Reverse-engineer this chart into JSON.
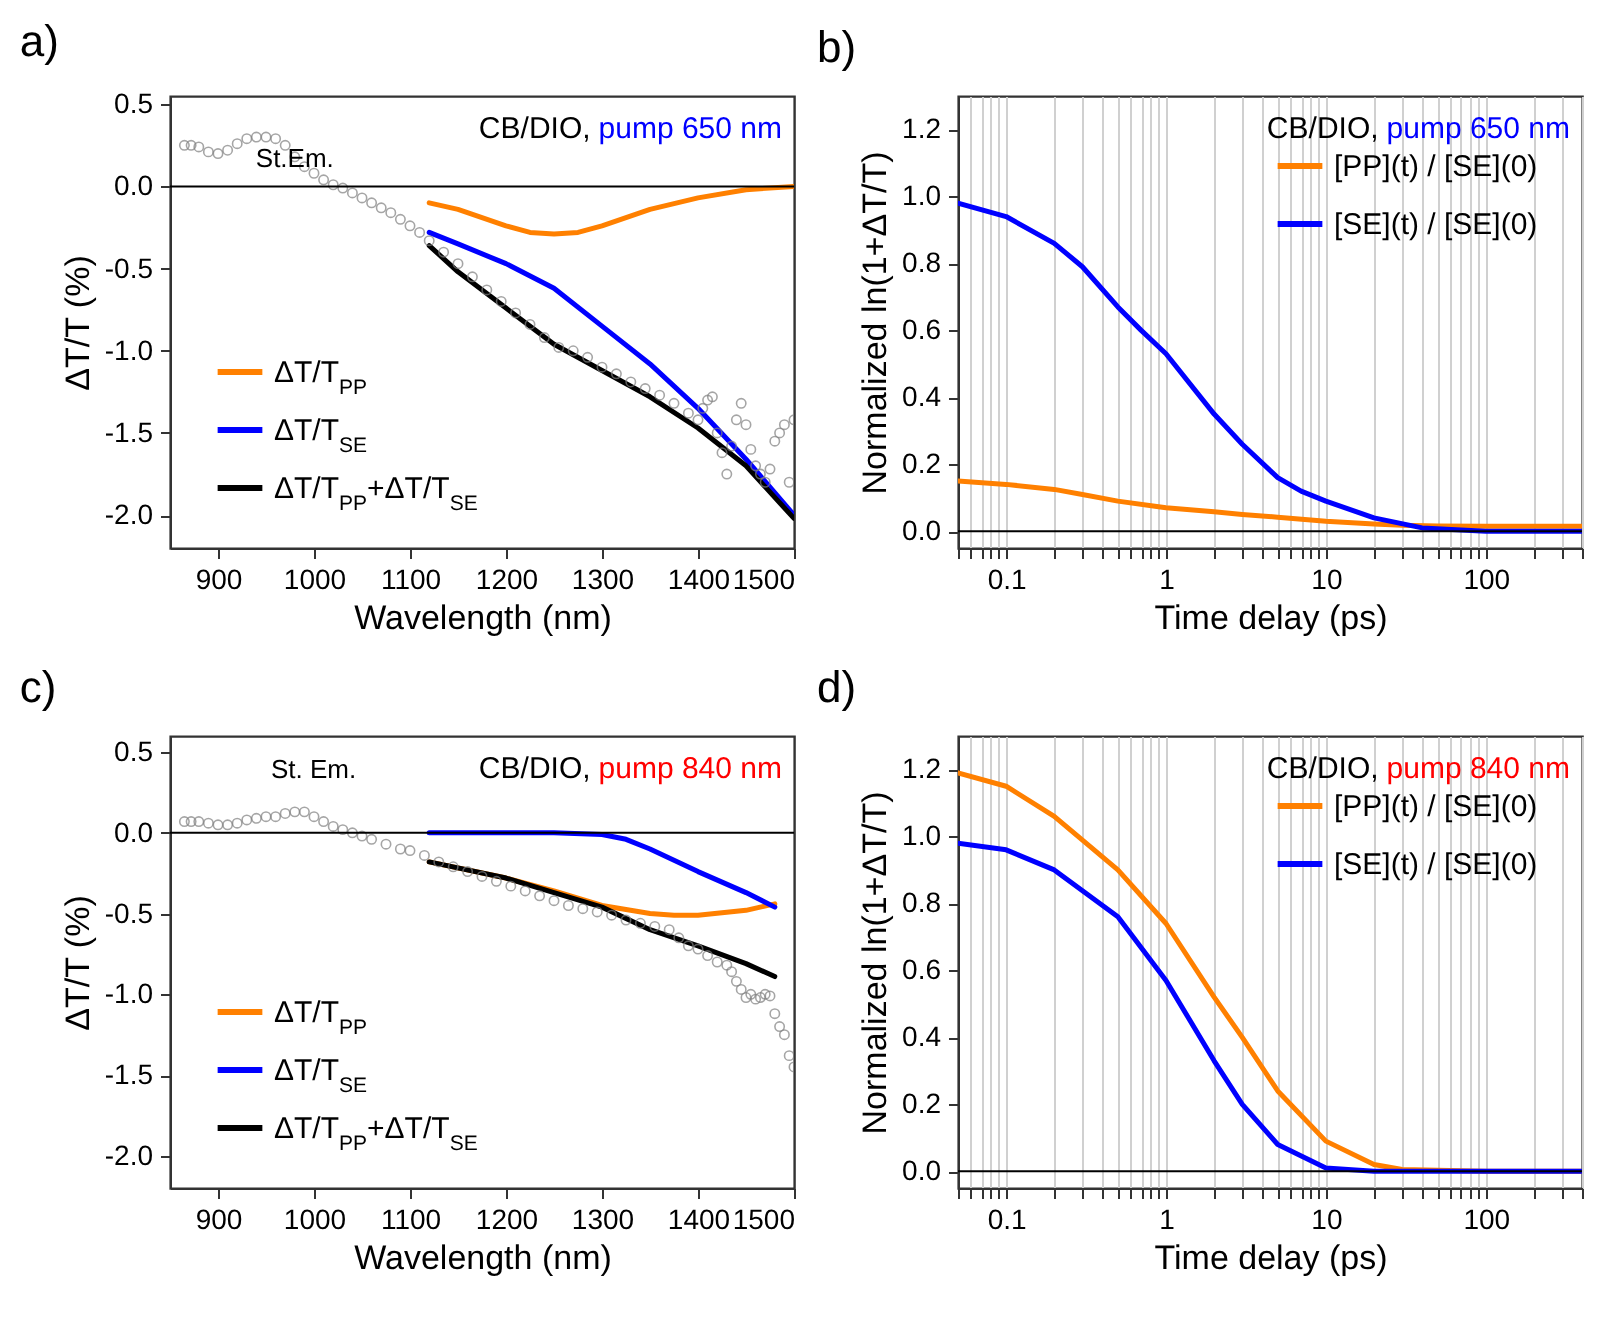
{
  "chart_data": [
    {
      "type": "line",
      "title": "a)",
      "xlabel": "Wavelength (nm)",
      "ylabel": "ΔT/T (%)",
      "xlim": [
        850,
        1500
      ],
      "xticks": [
        900,
        1000,
        1100,
        1200,
        1300,
        1400,
        1500
      ],
      "ylim": [
        -2.2,
        0.55
      ],
      "yticks": [
        {
          "value": -2,
          "label": "-2.0"
        },
        -1.5,
        {
          "value": -1,
          "label": "-1.0"
        },
        -0.5,
        {
          "value": 0,
          "label": "0.0"
        },
        0.5
      ],
      "legend": "bottom left",
      "annotations": [
        "CB/DIO,",
        "pump 650 nm",
        "St.Em."
      ],
      "ref_lines": [
        {
          "axis": "y",
          "value": 0
        }
      ],
      "series": [
        {
          "type": "scatter",
          "color": "#808080",
          "x": [
            865,
            872,
            880,
            890,
            900,
            910,
            920,
            930,
            940,
            950,
            960,
            970,
            980,
            990,
            1000,
            1010,
            1020,
            1030,
            1040,
            1050,
            1060,
            1070,
            1080,
            1090,
            1100,
            1110,
            1120,
            1135,
            1150,
            1165,
            1180,
            1195,
            1210,
            1225,
            1240,
            1255,
            1270,
            1285,
            1300,
            1315,
            1330,
            1345,
            1360,
            1375,
            1390,
            1400,
            1405,
            1410,
            1415,
            1420,
            1425,
            1430,
            1435,
            1440,
            1445,
            1450,
            1455,
            1460,
            1465,
            1470,
            1475,
            1480,
            1485,
            1490,
            1495,
            1500
          ],
          "values": [
            0.25,
            0.25,
            0.24,
            0.21,
            0.2,
            0.22,
            0.26,
            0.29,
            0.3,
            0.3,
            0.29,
            0.25,
            0.18,
            0.12,
            0.08,
            0.04,
            0.01,
            -0.01,
            -0.04,
            -0.07,
            -0.1,
            -0.13,
            -0.16,
            -0.2,
            -0.24,
            -0.28,
            -0.33,
            -0.4,
            -0.47,
            -0.55,
            -0.63,
            -0.7,
            -0.77,
            -0.84,
            -0.92,
            -0.98,
            -1.0,
            -1.04,
            -1.1,
            -1.14,
            -1.19,
            -1.23,
            -1.27,
            -1.32,
            -1.38,
            -1.42,
            -1.35,
            -1.3,
            -1.28,
            -1.5,
            -1.62,
            -1.75,
            -1.58,
            -1.42,
            -1.32,
            -1.45,
            -1.6,
            -1.7,
            -1.75,
            -1.8,
            -1.72,
            -1.55,
            -1.5,
            -1.45,
            -1.8,
            -1.42
          ]
        },
        {
          "type": "line",
          "name": "ΔT/T$_{PP}$",
          "color": "#ff8000",
          "x": [
            1120,
            1150,
            1200,
            1225,
            1250,
            1275,
            1300,
            1350,
            1400,
            1450,
            1500
          ],
          "values": [
            -0.1,
            -0.14,
            -0.24,
            -0.28,
            -0.29,
            -0.28,
            -0.24,
            -0.14,
            -0.07,
            -0.02,
            0
          ]
        },
        {
          "type": "line",
          "name": "ΔT/T$_{SE}$",
          "color": "#0000ff",
          "x": [
            1120,
            1150,
            1200,
            1250,
            1300,
            1350,
            1400,
            1450,
            1500
          ],
          "values": [
            -0.28,
            -0.35,
            -0.47,
            -0.62,
            -0.85,
            -1.08,
            -1.35,
            -1.66,
            -2.0
          ]
        },
        {
          "type": "line",
          "name": "ΔT/T$_{PP}$+ΔT/T$_{SE}$",
          "color": "#000000",
          "x": [
            1120,
            1150,
            1200,
            1250,
            1300,
            1350,
            1400,
            1450,
            1500
          ],
          "values": [
            -0.36,
            -0.52,
            -0.74,
            -0.96,
            -1.12,
            -1.28,
            -1.47,
            -1.7,
            -2.02
          ]
        }
      ]
    },
    {
      "type": "line",
      "title": "b)",
      "xlabel": "Time delay (ps)",
      "ylabel": "Normalized ln(1+ΔT/T)",
      "log": "x",
      "grid": "x",
      "xlim": [
        0.05,
        400
      ],
      "xticks": [
        {
          "value": 0.05,
          "label": null
        },
        {
          "value": 0.06,
          "label": null
        },
        {
          "value": 0.07,
          "label": null
        },
        {
          "value": 0.08,
          "label": null
        },
        {
          "value": 0.09,
          "label": null
        },
        0.1,
        {
          "value": 0.2,
          "label": null
        },
        {
          "value": 0.3,
          "label": null
        },
        {
          "value": 0.4,
          "label": null
        },
        {
          "value": 0.5,
          "label": null
        },
        {
          "value": 0.6,
          "label": null
        },
        {
          "value": 0.7,
          "label": null
        },
        {
          "value": 0.8,
          "label": null
        },
        {
          "value": 0.9,
          "label": null
        },
        1,
        {
          "value": 2,
          "label": null
        },
        {
          "value": 3,
          "label": null
        },
        {
          "value": 4,
          "label": null
        },
        {
          "value": 5,
          "label": null
        },
        {
          "value": 6,
          "label": null
        },
        {
          "value": 7,
          "label": null
        },
        {
          "value": 8,
          "label": null
        },
        {
          "value": 9,
          "label": null
        },
        10,
        {
          "value": 20,
          "label": null
        },
        {
          "value": 30,
          "label": null
        },
        {
          "value": 40,
          "label": null
        },
        {
          "value": 50,
          "label": null
        },
        {
          "value": 60,
          "label": null
        },
        {
          "value": 70,
          "label": null
        },
        {
          "value": 80,
          "label": null
        },
        {
          "value": 90,
          "label": null
        },
        100,
        {
          "value": 200,
          "label": null
        },
        {
          "value": 300,
          "label": null
        },
        {
          "value": 400,
          "label": null
        }
      ],
      "ylim": [
        -0.05,
        1.3
      ],
      "yticks": [
        {
          "value": 0,
          "label": "0.0"
        },
        0.2,
        0.4,
        0.6,
        0.8,
        {
          "value": 1,
          "label": "1.0"
        },
        1.2
      ],
      "legend": "top right",
      "annotations": [
        "CB/DIO,",
        "pump 650 nm"
      ],
      "ref_lines": [
        {
          "axis": "y",
          "value": 0
        }
      ],
      "series": [
        {
          "type": "line",
          "name": "[PP](t) / [SE](0)",
          "color": "#ff8000",
          "x": [
            0.05,
            0.1,
            0.2,
            0.3,
            0.5,
            1,
            2,
            3,
            5,
            10,
            20,
            30,
            50,
            100,
            400
          ],
          "values": [
            0.15,
            0.14,
            0.125,
            0.11,
            0.09,
            0.07,
            0.058,
            0.05,
            0.042,
            0.03,
            0.022,
            0.018,
            0.016,
            0.015,
            0.015
          ]
        },
        {
          "type": "line",
          "name": "[SE](t) / [SE](0)",
          "color": "#0000ff",
          "x": [
            0.05,
            0.1,
            0.2,
            0.3,
            0.5,
            0.7,
            1,
            2,
            3,
            5,
            7,
            10,
            20,
            40,
            100,
            400
          ],
          "values": [
            0.98,
            0.94,
            0.86,
            0.79,
            0.67,
            0.6,
            0.53,
            0.35,
            0.26,
            0.16,
            0.12,
            0.09,
            0.04,
            0.01,
            0,
            0
          ]
        }
      ]
    },
    {
      "type": "line",
      "title": "c)",
      "xlabel": "Wavelength (nm)",
      "ylabel": "ΔT/T (%)",
      "xlim": [
        850,
        1500
      ],
      "xticks": [
        900,
        1000,
        1100,
        1200,
        1300,
        1400,
        1500
      ],
      "ylim": [
        -2.2,
        0.6
      ],
      "yticks": [
        {
          "value": -2,
          "label": "-2.0"
        },
        -1.5,
        {
          "value": -1,
          "label": "-1.0"
        },
        -0.5,
        {
          "value": 0,
          "label": "0.0"
        },
        0.5
      ],
      "legend": "bottom left",
      "annotations": [
        "CB/DIO,",
        "pump 840 nm",
        "St. Em."
      ],
      "ref_lines": [
        {
          "axis": "y",
          "value": 0
        }
      ],
      "series": [
        {
          "type": "scatter",
          "color": "#808080",
          "x": [
            865,
            872,
            880,
            890,
            900,
            910,
            920,
            930,
            940,
            950,
            960,
            970,
            980,
            990,
            1000,
            1010,
            1020,
            1030,
            1040,
            1050,
            1060,
            1075,
            1090,
            1100,
            1115,
            1130,
            1145,
            1160,
            1175,
            1190,
            1205,
            1220,
            1235,
            1250,
            1265,
            1280,
            1295,
            1310,
            1325,
            1340,
            1355,
            1370,
            1380,
            1390,
            1400,
            1410,
            1420,
            1430,
            1435,
            1440,
            1445,
            1450,
            1455,
            1460,
            1465,
            1470,
            1475,
            1480,
            1485,
            1490,
            1495,
            1500
          ],
          "values": [
            0.07,
            0.07,
            0.07,
            0.06,
            0.05,
            0.05,
            0.06,
            0.08,
            0.09,
            0.1,
            0.1,
            0.12,
            0.13,
            0.13,
            0.1,
            0.07,
            0.04,
            0.02,
            0,
            -0.02,
            -0.04,
            -0.07,
            -0.1,
            -0.11,
            -0.14,
            -0.18,
            -0.21,
            -0.24,
            -0.27,
            -0.3,
            -0.33,
            -0.36,
            -0.39,
            -0.42,
            -0.45,
            -0.47,
            -0.49,
            -0.51,
            -0.54,
            -0.56,
            -0.58,
            -0.6,
            -0.65,
            -0.7,
            -0.72,
            -0.76,
            -0.8,
            -0.82,
            -0.86,
            -0.92,
            -0.97,
            -1.02,
            -1.0,
            -1.03,
            -1.02,
            -1.0,
            -1.01,
            -1.12,
            -1.2,
            -1.25,
            -1.38,
            -1.45
          ]
        },
        {
          "type": "line",
          "name": "ΔT/T$_{PP}$",
          "color": "#ff8000",
          "x": [
            1120,
            1200,
            1250,
            1300,
            1350,
            1375,
            1400,
            1450,
            1480
          ],
          "values": [
            -0.18,
            -0.28,
            -0.36,
            -0.45,
            -0.5,
            -0.51,
            -0.51,
            -0.48,
            -0.44
          ]
        },
        {
          "type": "line",
          "name": "ΔT/T$_{SE}$",
          "color": "#0000ff",
          "x": [
            1120,
            1200,
            1250,
            1300,
            1325,
            1350,
            1400,
            1450,
            1480
          ],
          "values": [
            0,
            0,
            0,
            -0.01,
            -0.04,
            -0.1,
            -0.24,
            -0.37,
            -0.46
          ]
        },
        {
          "type": "line",
          "name": "ΔT/T$_{PP}$+ΔT/T$_{SE}$",
          "color": "#000000",
          "x": [
            1120,
            1200,
            1250,
            1300,
            1350,
            1400,
            1450,
            1480
          ],
          "values": [
            -0.18,
            -0.28,
            -0.37,
            -0.46,
            -0.6,
            -0.7,
            -0.81,
            -0.89
          ]
        }
      ]
    },
    {
      "type": "line",
      "title": "d)",
      "xlabel": "Time delay (ps)",
      "ylabel": "Normalized ln(1+ΔT/T)",
      "log": "x",
      "grid": "x",
      "xlim": [
        0.05,
        400
      ],
      "xticks": [
        {
          "value": 0.05,
          "label": null
        },
        {
          "value": 0.06,
          "label": null
        },
        {
          "value": 0.07,
          "label": null
        },
        {
          "value": 0.08,
          "label": null
        },
        {
          "value": 0.09,
          "label": null
        },
        0.1,
        {
          "value": 0.2,
          "label": null
        },
        {
          "value": 0.3,
          "label": null
        },
        {
          "value": 0.4,
          "label": null
        },
        {
          "value": 0.5,
          "label": null
        },
        {
          "value": 0.6,
          "label": null
        },
        {
          "value": 0.7,
          "label": null
        },
        {
          "value": 0.8,
          "label": null
        },
        {
          "value": 0.9,
          "label": null
        },
        1,
        {
          "value": 2,
          "label": null
        },
        {
          "value": 3,
          "label": null
        },
        {
          "value": 4,
          "label": null
        },
        {
          "value": 5,
          "label": null
        },
        {
          "value": 6,
          "label": null
        },
        {
          "value": 7,
          "label": null
        },
        {
          "value": 8,
          "label": null
        },
        {
          "value": 9,
          "label": null
        },
        10,
        {
          "value": 20,
          "label": null
        },
        {
          "value": 30,
          "label": null
        },
        {
          "value": 40,
          "label": null
        },
        {
          "value": 50,
          "label": null
        },
        {
          "value": 60,
          "label": null
        },
        {
          "value": 70,
          "label": null
        },
        {
          "value": 80,
          "label": null
        },
        {
          "value": 90,
          "label": null
        },
        100,
        {
          "value": 200,
          "label": null
        },
        {
          "value": 300,
          "label": null
        },
        {
          "value": 400,
          "label": null
        }
      ],
      "ylim": [
        -0.05,
        1.3
      ],
      "yticks": [
        {
          "value": 0,
          "label": "0.0"
        },
        0.2,
        0.4,
        0.6,
        0.8,
        {
          "value": 1,
          "label": "1.0"
        },
        1.2
      ],
      "legend": "top right",
      "annotations": [
        "CB/DIO,",
        "pump 840 nm"
      ],
      "ref_lines": [
        {
          "axis": "y",
          "value": 0
        }
      ],
      "series": [
        {
          "type": "line",
          "name": "[PP](t) / [SE](0)",
          "color": "#ff8000",
          "x": [
            0.05,
            0.1,
            0.2,
            0.5,
            1,
            2,
            3,
            5,
            10,
            20,
            30,
            100,
            400
          ],
          "values": [
            1.19,
            1.15,
            1.06,
            0.9,
            0.74,
            0.52,
            0.4,
            0.24,
            0.09,
            0.02,
            0.005,
            0,
            0
          ]
        },
        {
          "type": "line",
          "name": "[SE](t) / [SE](0)",
          "color": "#0000ff",
          "x": [
            0.05,
            0.1,
            0.2,
            0.5,
            1,
            2,
            3,
            5,
            10,
            20,
            400
          ],
          "values": [
            0.98,
            0.96,
            0.9,
            0.76,
            0.57,
            0.33,
            0.2,
            0.08,
            0.01,
            0,
            0
          ]
        }
      ]
    }
  ]
}
